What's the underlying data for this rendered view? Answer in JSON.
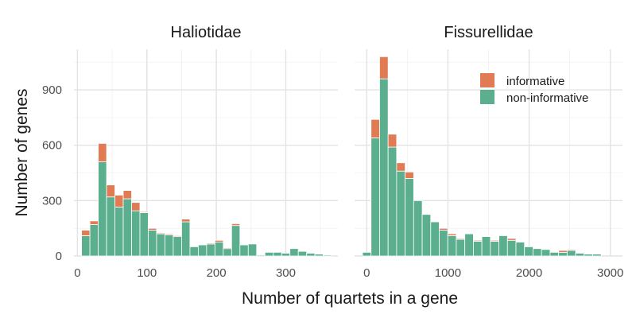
{
  "chart_data": {
    "type": "bar",
    "xlabel": "Number of quartets in a gene",
    "ylabel": "Number of genes",
    "grid": true,
    "legend": {
      "placement": "top-right of right panel",
      "entries": [
        {
          "name": "informative",
          "color": "#E07B54"
        },
        {
          "name": "non-informative",
          "color": "#5BAF8E"
        }
      ]
    },
    "panels": [
      {
        "title": "Haliotidae",
        "xlim": [
          -5,
          375
        ],
        "ylim": [
          0,
          1120
        ],
        "x_ticks": [
          0,
          100,
          200,
          300
        ],
        "y_ticks": [
          0,
          300,
          600,
          900
        ],
        "bin_width": 12,
        "bin_starts": [
          6,
          18,
          30,
          42,
          54,
          66,
          78,
          90,
          102,
          114,
          126,
          138,
          150,
          162,
          174,
          186,
          198,
          210,
          222,
          234,
          246,
          258,
          270,
          282,
          294,
          306,
          318,
          330,
          342,
          354
        ],
        "series": [
          {
            "name": "non-informative",
            "values": [
              110,
              170,
              510,
              320,
              265,
              310,
              245,
              235,
              140,
              120,
              115,
              105,
              185,
              50,
              60,
              65,
              75,
              40,
              165,
              60,
              65,
              5,
              20,
              20,
              15,
              40,
              25,
              15,
              10,
              5
            ]
          },
          {
            "name": "informative",
            "values": [
              30,
              20,
              100,
              65,
              65,
              45,
              45,
              5,
              10,
              5,
              5,
              5,
              15,
              0,
              0,
              5,
              10,
              5,
              10,
              0,
              0,
              0,
              0,
              0,
              0,
              0,
              0,
              0,
              0,
              0
            ]
          }
        ]
      },
      {
        "title": "Fissurellidae",
        "xlim": [
          -150,
          3150
        ],
        "ylim": [
          0,
          1120
        ],
        "x_ticks": [
          0,
          1000,
          2000,
          3000
        ],
        "y_ticks": [
          0,
          300,
          600,
          900
        ],
        "bin_width": 105,
        "bin_starts": [
          -52,
          53,
          158,
          263,
          368,
          473,
          578,
          683,
          788,
          893,
          998,
          1103,
          1208,
          1313,
          1418,
          1523,
          1628,
          1733,
          1838,
          1943,
          2048,
          2153,
          2258,
          2363,
          2468,
          2573,
          2678,
          2783
        ],
        "series": [
          {
            "name": "non-informative",
            "values": [
              20,
              640,
              960,
              590,
              460,
              420,
              300,
              225,
              185,
              140,
              110,
              90,
              120,
              80,
              105,
              80,
              110,
              85,
              75,
              50,
              40,
              35,
              20,
              20,
              30,
              15,
              10,
              10
            ]
          },
          {
            "name": "informative",
            "values": [
              0,
              100,
              120,
              70,
              45,
              35,
              0,
              0,
              0,
              10,
              10,
              5,
              0,
              5,
              0,
              5,
              0,
              10,
              0,
              0,
              0,
              0,
              0,
              10,
              5,
              0,
              0,
              0
            ]
          }
        ]
      }
    ]
  }
}
